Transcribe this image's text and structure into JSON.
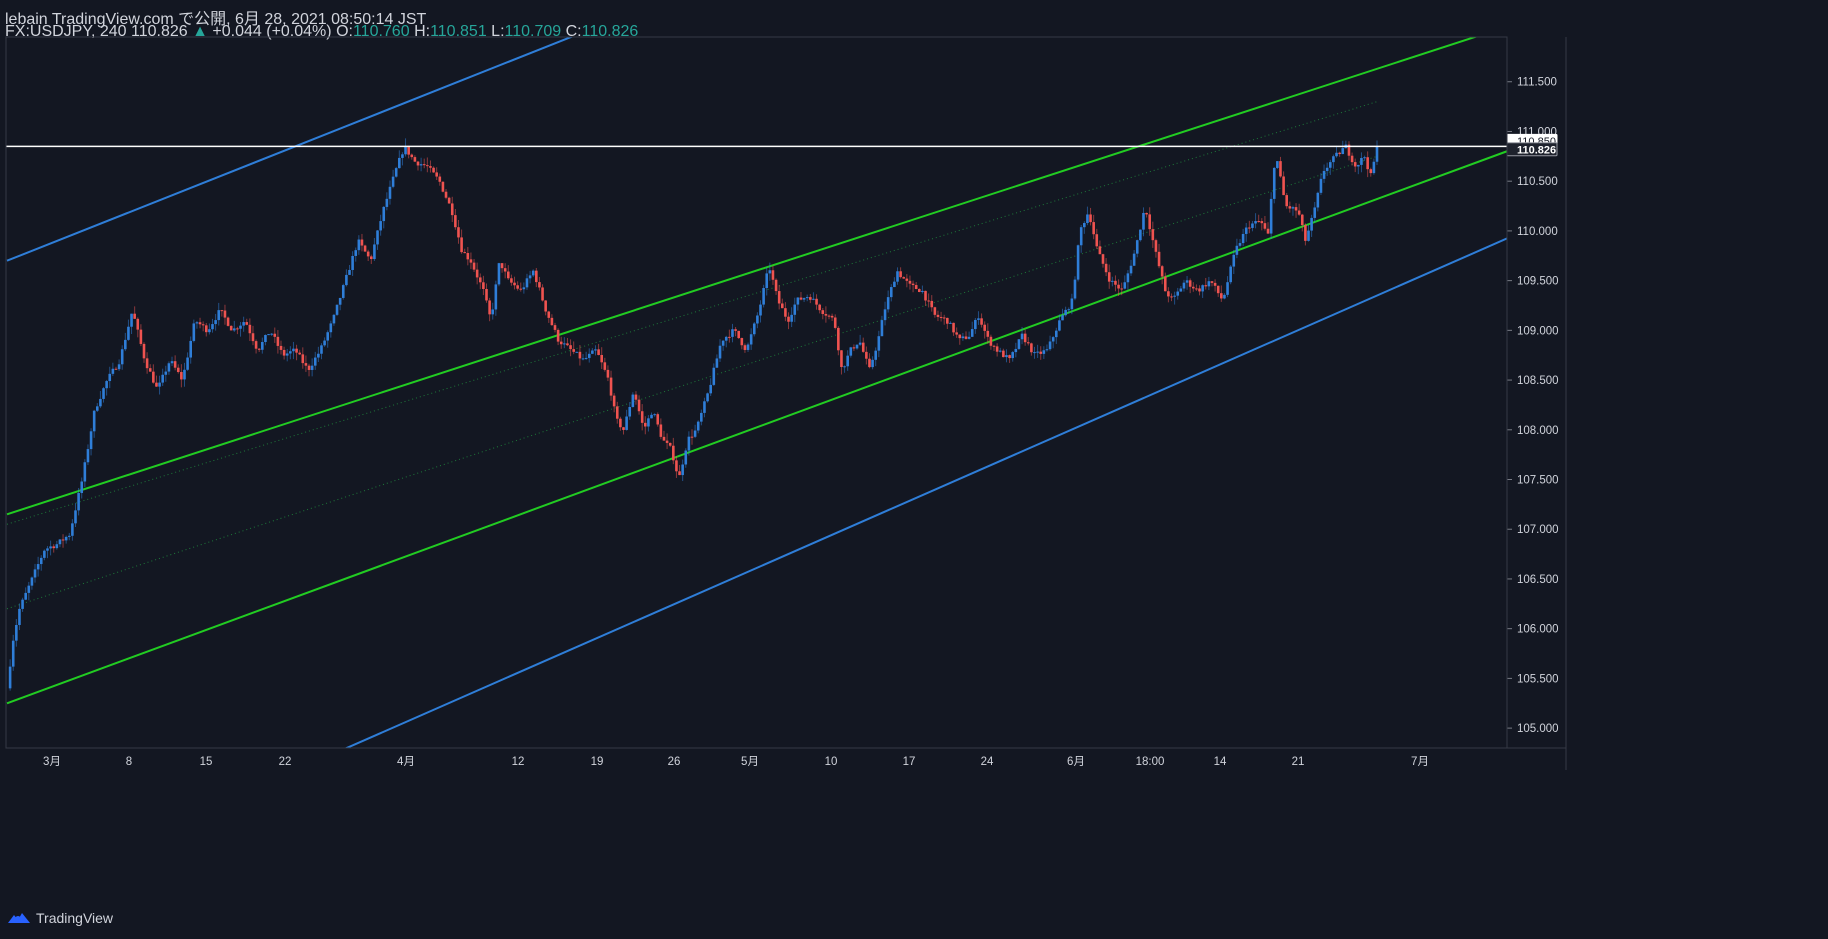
{
  "header": {
    "published": "lebain TradingView.com で公開, 6月 28, 2021 08:50:14 JST",
    "symbol": "FX:USDJPY, 240",
    "last": "110.826",
    "change_arrow": "▲",
    "change": "+0.044 (+0.04%)",
    "o_label": "O:",
    "o_value": "110.760",
    "h_label": "H:",
    "h_value": "110.851",
    "l_label": "L:",
    "l_value": "110.709",
    "c_label": "C:",
    "c_value": "110.826"
  },
  "footer": {
    "brand": "TradingView"
  },
  "chart_data": {
    "type": "candlestick",
    "symbol": "FX:USDJPY",
    "interval": "240",
    "ylim": [
      104.8,
      111.95
    ],
    "y_ticks": [
      "105.000",
      "105.500",
      "106.000",
      "106.500",
      "107.000",
      "107.500",
      "108.000",
      "108.500",
      "109.000",
      "109.500",
      "110.000",
      "110.500",
      "111.000",
      "111.500"
    ],
    "x_ticks": [
      "3月",
      "8",
      "15",
      "22",
      "4月",
      "12",
      "19",
      "26",
      "5月",
      "10",
      "17",
      "24",
      "6月",
      "18:00",
      "14",
      "21",
      "7月"
    ],
    "price_labels": [
      {
        "text": "110.850",
        "value": 110.85,
        "style": "light"
      },
      {
        "text": "110.826",
        "value": 110.826,
        "style": "dark"
      }
    ],
    "horizontal_line": 110.85,
    "colors": {
      "up": "#2f7ed8",
      "down": "#ef5350",
      "channel": "#22cc22",
      "outer": "#2f7ed8",
      "hline": "#ffffff",
      "background": "#131722"
    },
    "path": [
      [
        0,
        105.4
      ],
      [
        0.5,
        105.9
      ],
      [
        1,
        106.2
      ],
      [
        2,
        106.5
      ],
      [
        3,
        106.8
      ],
      [
        4,
        106.85
      ],
      [
        5,
        106.95
      ],
      [
        6,
        107.5
      ],
      [
        7,
        108.2
      ],
      [
        8,
        108.5
      ],
      [
        9,
        108.7
      ],
      [
        10,
        109.2
      ],
      [
        11,
        108.7
      ],
      [
        12,
        108.4
      ],
      [
        13,
        108.7
      ],
      [
        14,
        108.5
      ],
      [
        15,
        109.1
      ],
      [
        16,
        109.0
      ],
      [
        17,
        109.2
      ],
      [
        18,
        109.0
      ],
      [
        19,
        109.1
      ],
      [
        20,
        108.8
      ],
      [
        21,
        109.0
      ],
      [
        22,
        108.75
      ],
      [
        23,
        108.8
      ],
      [
        24,
        108.6
      ],
      [
        25,
        108.8
      ],
      [
        26,
        109.1
      ],
      [
        27,
        109.5
      ],
      [
        28,
        109.9
      ],
      [
        29,
        109.7
      ],
      [
        30,
        110.2
      ],
      [
        31,
        110.6
      ],
      [
        31.7,
        110.85
      ],
      [
        32.5,
        110.7
      ],
      [
        33.5,
        110.65
      ],
      [
        34.5,
        110.5
      ],
      [
        35.5,
        110.2
      ],
      [
        36.3,
        109.8
      ],
      [
        37,
        109.7
      ],
      [
        38,
        109.4
      ],
      [
        38.6,
        109.1
      ],
      [
        39.3,
        109.7
      ],
      [
        40,
        109.5
      ],
      [
        41,
        109.4
      ],
      [
        42,
        109.6
      ],
      [
        43,
        109.2
      ],
      [
        44,
        108.9
      ],
      [
        45,
        108.8
      ],
      [
        46,
        108.7
      ],
      [
        47,
        108.8
      ],
      [
        48,
        108.5
      ],
      [
        48.6,
        108.1
      ],
      [
        49.2,
        108.0
      ],
      [
        50,
        108.4
      ],
      [
        50.8,
        108.0
      ],
      [
        51.5,
        108.2
      ],
      [
        52.3,
        107.9
      ],
      [
        53,
        107.8
      ],
      [
        53.6,
        107.5
      ],
      [
        54.3,
        107.9
      ],
      [
        55,
        108.0
      ],
      [
        56,
        108.4
      ],
      [
        57,
        108.9
      ],
      [
        58,
        109.0
      ],
      [
        59,
        108.8
      ],
      [
        60,
        109.2
      ],
      [
        60.8,
        109.65
      ],
      [
        61.5,
        109.3
      ],
      [
        62.3,
        109.1
      ],
      [
        63,
        109.3
      ],
      [
        64,
        109.35
      ],
      [
        65,
        109.2
      ],
      [
        66,
        109.1
      ],
      [
        66.6,
        108.6
      ],
      [
        67.3,
        108.8
      ],
      [
        68,
        108.9
      ],
      [
        68.8,
        108.6
      ],
      [
        69.5,
        108.9
      ],
      [
        70,
        109.2
      ],
      [
        71,
        109.6
      ],
      [
        72,
        109.45
      ],
      [
        73,
        109.4
      ],
      [
        74,
        109.15
      ],
      [
        75,
        109.1
      ],
      [
        76,
        108.9
      ],
      [
        76.8,
        108.95
      ],
      [
        77.5,
        109.15
      ],
      [
        78.3,
        108.9
      ],
      [
        79,
        108.8
      ],
      [
        80,
        108.7
      ],
      [
        81,
        108.95
      ],
      [
        82,
        108.75
      ],
      [
        83,
        108.8
      ],
      [
        84,
        109.1
      ],
      [
        85,
        109.3
      ],
      [
        85.6,
        110.0
      ],
      [
        86.3,
        110.2
      ],
      [
        87,
        109.8
      ],
      [
        88,
        109.5
      ],
      [
        89,
        109.4
      ],
      [
        90,
        109.8
      ],
      [
        90.8,
        110.25
      ],
      [
        91.6,
        109.8
      ],
      [
        92.4,
        109.4
      ],
      [
        93,
        109.3
      ],
      [
        94,
        109.5
      ],
      [
        95,
        109.4
      ],
      [
        96,
        109.5
      ],
      [
        97,
        109.3
      ],
      [
        98,
        109.8
      ],
      [
        99,
        110.05
      ],
      [
        100,
        110.1
      ],
      [
        100.6,
        109.95
      ],
      [
        101.2,
        110.8
      ],
      [
        102,
        110.25
      ],
      [
        103,
        110.2
      ],
      [
        103.6,
        109.9
      ],
      [
        104.3,
        110.2
      ],
      [
        105,
        110.6
      ],
      [
        106,
        110.75
      ],
      [
        106.8,
        110.85
      ],
      [
        107.6,
        110.65
      ],
      [
        108.3,
        110.75
      ],
      [
        108.8,
        110.55
      ],
      [
        109.3,
        110.83
      ]
    ],
    "channel_lines": [
      {
        "color": "#22cc22",
        "width": 2,
        "p1": [
          0,
          107.15
        ],
        "p2": [
          109.3,
          111.63
        ]
      },
      {
        "color": "#22cc22",
        "width": 2,
        "p1": [
          0,
          105.25
        ],
        "p2": [
          109.3,
          110.32
        ]
      },
      {
        "color": "#2f7ed8",
        "width": 2,
        "p1": [
          0,
          109.7
        ],
        "p2": [
          60,
          112.7
        ]
      },
      {
        "color": "#2f7ed8",
        "width": 2,
        "p1": [
          0,
          103.3
        ],
        "p2": [
          109.3,
          109.35
        ]
      }
    ],
    "dotted_lines": [
      {
        "color": "#1e7a3a",
        "p1": [
          0,
          107.05
        ],
        "p2": [
          109.3,
          111.3
        ]
      },
      {
        "color": "#1e7a3a",
        "p1": [
          0,
          106.2
        ],
        "p2": [
          109.3,
          110.75
        ]
      }
    ]
  }
}
